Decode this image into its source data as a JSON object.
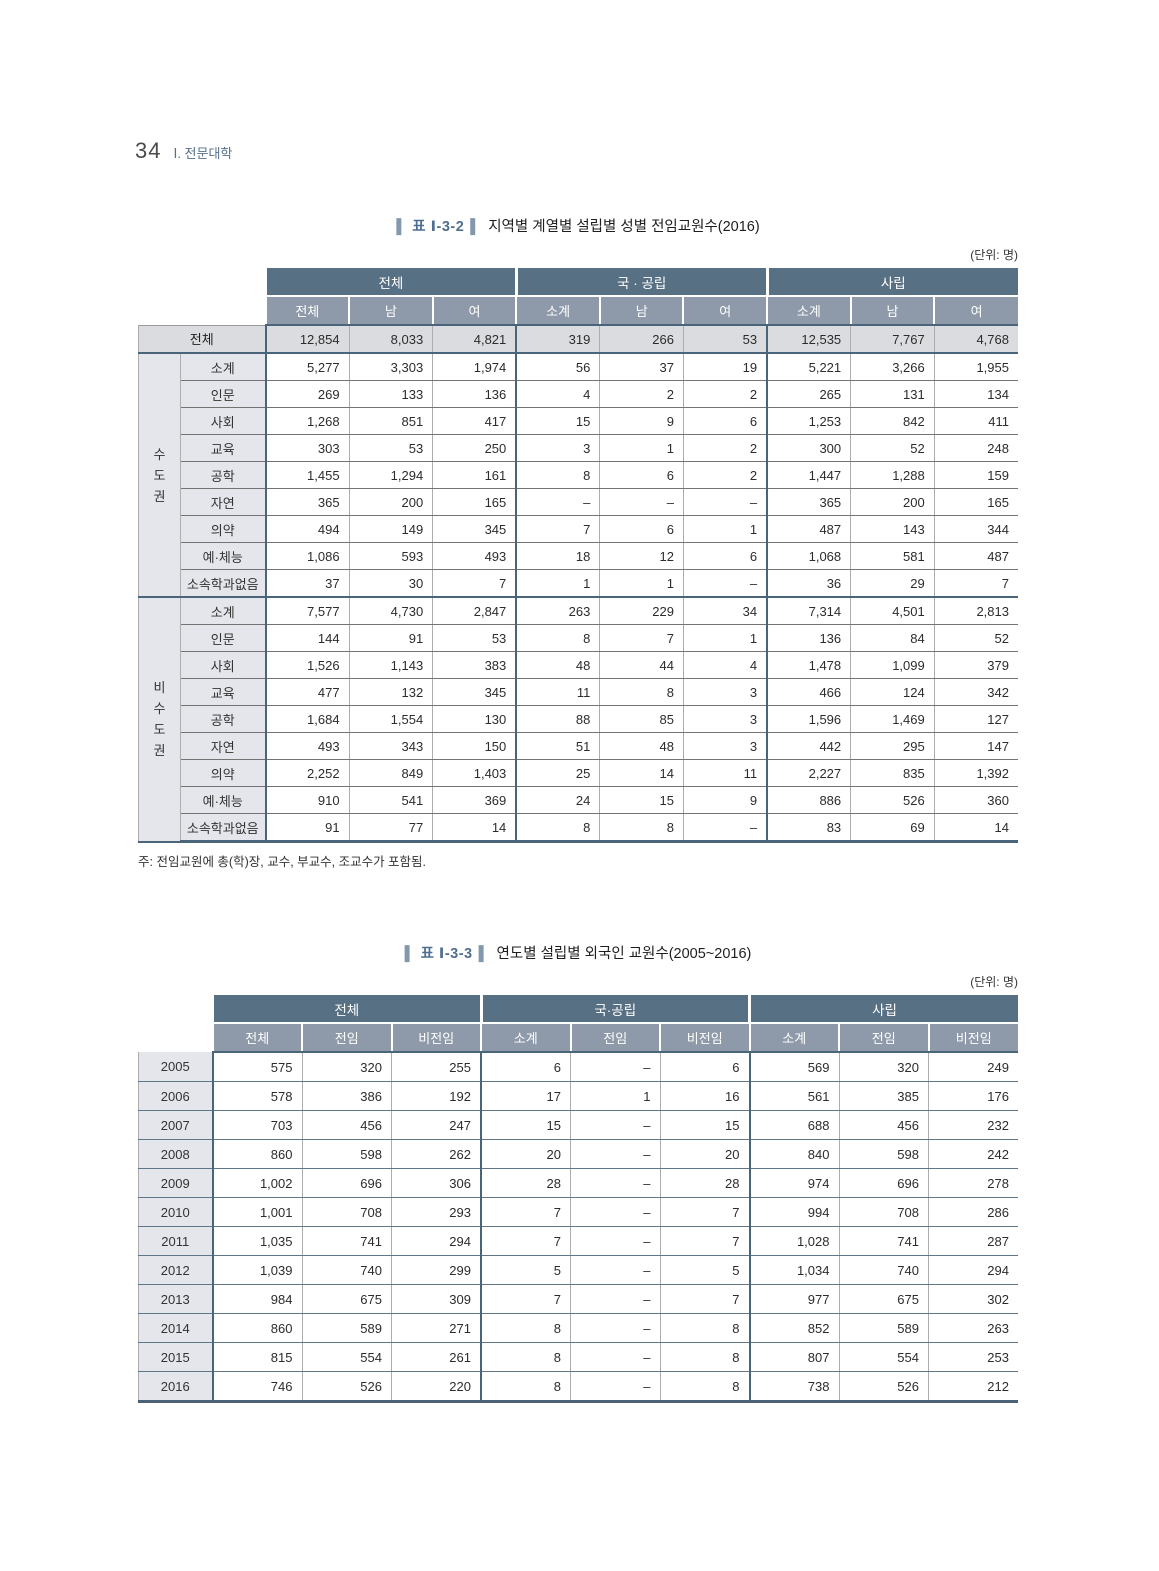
{
  "page": {
    "number": "34",
    "section": "Ⅰ. 전문대학"
  },
  "table1": {
    "label": "표  Ⅰ-3-2",
    "title": "지역별 계열별 설립별 성별 전임교원수(2016)",
    "unit": "(단위: 명)",
    "col_groups": [
      "전체",
      "국 · 공립",
      "사립"
    ],
    "sub_headers": [
      "전체",
      "남",
      "여",
      "소계",
      "남",
      "여",
      "소계",
      "남",
      "여"
    ],
    "total_row": {
      "label": "전체",
      "values": [
        "12,854",
        "8,033",
        "4,821",
        "319",
        "266",
        "53",
        "12,535",
        "7,767",
        "4,768"
      ]
    },
    "sections": [
      {
        "region": "수도권",
        "rows": [
          {
            "label": "소계",
            "values": [
              "5,277",
              "3,303",
              "1,974",
              "56",
              "37",
              "19",
              "5,221",
              "3,266",
              "1,955"
            ]
          },
          {
            "label": "인문",
            "values": [
              "269",
              "133",
              "136",
              "4",
              "2",
              "2",
              "265",
              "131",
              "134"
            ]
          },
          {
            "label": "사회",
            "values": [
              "1,268",
              "851",
              "417",
              "15",
              "9",
              "6",
              "1,253",
              "842",
              "411"
            ]
          },
          {
            "label": "교육",
            "values": [
              "303",
              "53",
              "250",
              "3",
              "1",
              "2",
              "300",
              "52",
              "248"
            ]
          },
          {
            "label": "공학",
            "values": [
              "1,455",
              "1,294",
              "161",
              "8",
              "6",
              "2",
              "1,447",
              "1,288",
              "159"
            ]
          },
          {
            "label": "자연",
            "values": [
              "365",
              "200",
              "165",
              "–",
              "–",
              "–",
              "365",
              "200",
              "165"
            ]
          },
          {
            "label": "의약",
            "values": [
              "494",
              "149",
              "345",
              "7",
              "6",
              "1",
              "487",
              "143",
              "344"
            ]
          },
          {
            "label": "예·체능",
            "values": [
              "1,086",
              "593",
              "493",
              "18",
              "12",
              "6",
              "1,068",
              "581",
              "487"
            ]
          },
          {
            "label": "소속학과없음",
            "values": [
              "37",
              "30",
              "7",
              "1",
              "1",
              "–",
              "36",
              "29",
              "7"
            ]
          }
        ]
      },
      {
        "region": "비수도권",
        "rows": [
          {
            "label": "소계",
            "values": [
              "7,577",
              "4,730",
              "2,847",
              "263",
              "229",
              "34",
              "7,314",
              "4,501",
              "2,813"
            ]
          },
          {
            "label": "인문",
            "values": [
              "144",
              "91",
              "53",
              "8",
              "7",
              "1",
              "136",
              "84",
              "52"
            ]
          },
          {
            "label": "사회",
            "values": [
              "1,526",
              "1,143",
              "383",
              "48",
              "44",
              "4",
              "1,478",
              "1,099",
              "379"
            ]
          },
          {
            "label": "교육",
            "values": [
              "477",
              "132",
              "345",
              "11",
              "8",
              "3",
              "466",
              "124",
              "342"
            ]
          },
          {
            "label": "공학",
            "values": [
              "1,684",
              "1,554",
              "130",
              "88",
              "85",
              "3",
              "1,596",
              "1,469",
              "127"
            ]
          },
          {
            "label": "자연",
            "values": [
              "493",
              "343",
              "150",
              "51",
              "48",
              "3",
              "442",
              "295",
              "147"
            ]
          },
          {
            "label": "의약",
            "values": [
              "2,252",
              "849",
              "1,403",
              "25",
              "14",
              "11",
              "2,227",
              "835",
              "1,392"
            ]
          },
          {
            "label": "예·체능",
            "values": [
              "910",
              "541",
              "369",
              "24",
              "15",
              "9",
              "886",
              "526",
              "360"
            ]
          },
          {
            "label": "소속학과없음",
            "values": [
              "91",
              "77",
              "14",
              "8",
              "8",
              "–",
              "83",
              "69",
              "14"
            ]
          }
        ]
      }
    ],
    "footnote": "주: 전임교원에 총(학)장, 교수, 부교수, 조교수가 포함됨."
  },
  "table2": {
    "label": "표  Ⅰ-3-3",
    "title": "연도별 설립별 외국인 교원수(2005~2016)",
    "unit": "(단위: 명)",
    "col_groups": [
      "전체",
      "국·공립",
      "사립"
    ],
    "sub_headers": [
      "전체",
      "전임",
      "비전임",
      "소계",
      "전임",
      "비전임",
      "소계",
      "전임",
      "비전임"
    ],
    "rows": [
      {
        "year": "2005",
        "values": [
          "575",
          "320",
          "255",
          "6",
          "–",
          "6",
          "569",
          "320",
          "249"
        ]
      },
      {
        "year": "2006",
        "values": [
          "578",
          "386",
          "192",
          "17",
          "1",
          "16",
          "561",
          "385",
          "176"
        ]
      },
      {
        "year": "2007",
        "values": [
          "703",
          "456",
          "247",
          "15",
          "–",
          "15",
          "688",
          "456",
          "232"
        ]
      },
      {
        "year": "2008",
        "values": [
          "860",
          "598",
          "262",
          "20",
          "–",
          "20",
          "840",
          "598",
          "242"
        ]
      },
      {
        "year": "2009",
        "values": [
          "1,002",
          "696",
          "306",
          "28",
          "–",
          "28",
          "974",
          "696",
          "278"
        ]
      },
      {
        "year": "2010",
        "values": [
          "1,001",
          "708",
          "293",
          "7",
          "–",
          "7",
          "994",
          "708",
          "286"
        ]
      },
      {
        "year": "2011",
        "values": [
          "1,035",
          "741",
          "294",
          "7",
          "–",
          "7",
          "1,028",
          "741",
          "287"
        ]
      },
      {
        "year": "2012",
        "values": [
          "1,039",
          "740",
          "299",
          "5",
          "–",
          "5",
          "1,034",
          "740",
          "294"
        ]
      },
      {
        "year": "2013",
        "values": [
          "984",
          "675",
          "309",
          "7",
          "–",
          "7",
          "977",
          "675",
          "302"
        ]
      },
      {
        "year": "2014",
        "values": [
          "860",
          "589",
          "271",
          "8",
          "–",
          "8",
          "852",
          "589",
          "263"
        ]
      },
      {
        "year": "2015",
        "values": [
          "815",
          "554",
          "261",
          "8",
          "–",
          "8",
          "807",
          "554",
          "253"
        ]
      },
      {
        "year": "2016",
        "values": [
          "746",
          "526",
          "220",
          "8",
          "–",
          "8",
          "738",
          "526",
          "212"
        ]
      }
    ]
  }
}
